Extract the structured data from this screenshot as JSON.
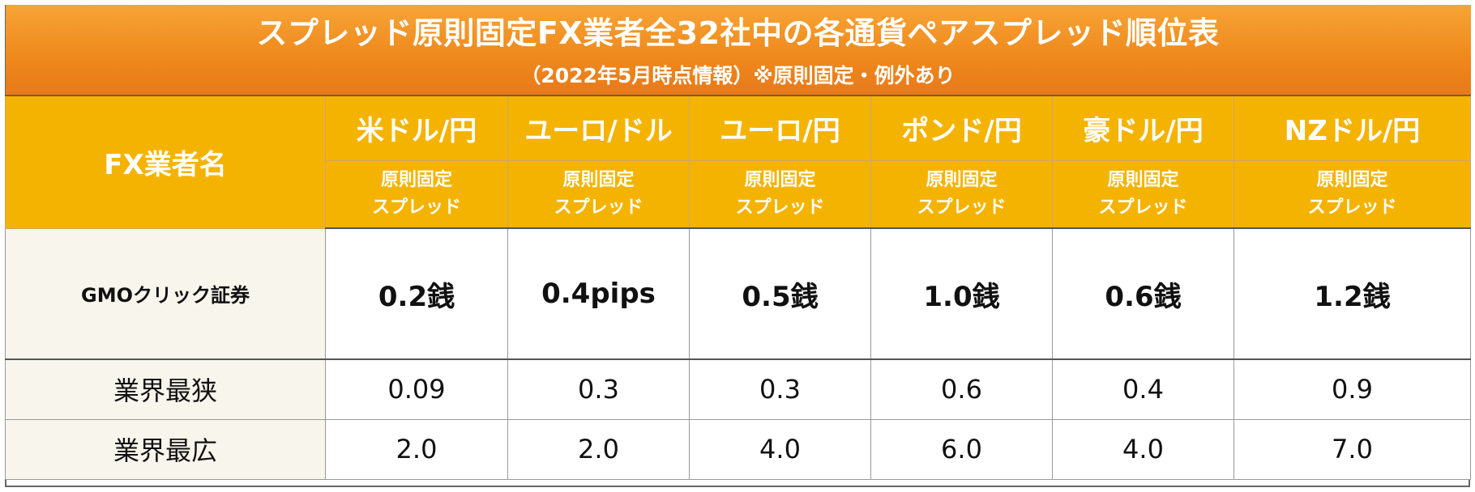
{
  "title": "スプレッド原則固定FX業者全32社中の各通貨ペアスプレッド順位表",
  "subtitle": "（2022年5月時点情報）※原則固定・例外あり",
  "header": {
    "broker_col": "FX業者名",
    "pairs": [
      "米ドル/円",
      "ユーロ/ドル",
      "ユーロ/円",
      "ポンド/円",
      "豪ドル/円",
      "NZドル/円"
    ],
    "spread_label": [
      "原則固定",
      "スプレッド"
    ]
  },
  "broker_row": {
    "name": "GMOクリック証券",
    "values": [
      "0.2銭",
      "0.4pips",
      "0.5銭",
      "1.0銭",
      "0.6銭",
      "1.2銭"
    ]
  },
  "stat_rows": [
    {
      "name": "業界最狭",
      "values": [
        "0.09",
        "0.3",
        "0.3",
        "0.6",
        "0.4",
        "0.9"
      ]
    },
    {
      "name": "業界最広",
      "values": [
        "2.0",
        "2.0",
        "4.0",
        "6.0",
        "4.0",
        "7.0"
      ]
    }
  ],
  "colors": {
    "title_bg": "#ef8a1d",
    "header_bg": "#f5b301",
    "name_col_bg": "#f7f5ec"
  }
}
